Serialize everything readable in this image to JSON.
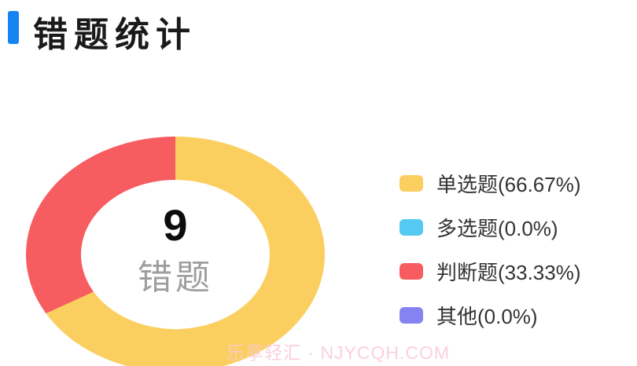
{
  "header": {
    "title": "错题统计",
    "accent_color": "#1583F2"
  },
  "donut": {
    "center_value": "9",
    "center_label": "错题"
  },
  "legend": {
    "items": [
      {
        "label": "单选题(66.67%)",
        "color": "#FBCF5F"
      },
      {
        "label": "多选题(0.0%)",
        "color": "#56C9F2"
      },
      {
        "label": "判断题(33.33%)",
        "color": "#F75D60"
      },
      {
        "label": "其他(0.0%)",
        "color": "#8583F2"
      }
    ]
  },
  "watermark": {
    "text": "乐享轻汇 · NJYCQH.COM"
  },
  "chart_data": {
    "type": "pie",
    "subtype": "donut",
    "title": "错题统计",
    "categories": [
      "单选题",
      "多选题",
      "判断题",
      "其他"
    ],
    "values": [
      66.67,
      0.0,
      33.33,
      0.0
    ],
    "unit": "%",
    "colors": [
      "#FBCF5F",
      "#56C9F2",
      "#F75D60",
      "#8583F2"
    ],
    "center_value": "9",
    "center_label": "错题",
    "total_wrong_questions": 9,
    "start_angle_deg": 0,
    "direction": "clockwise",
    "legend_position": "right"
  }
}
